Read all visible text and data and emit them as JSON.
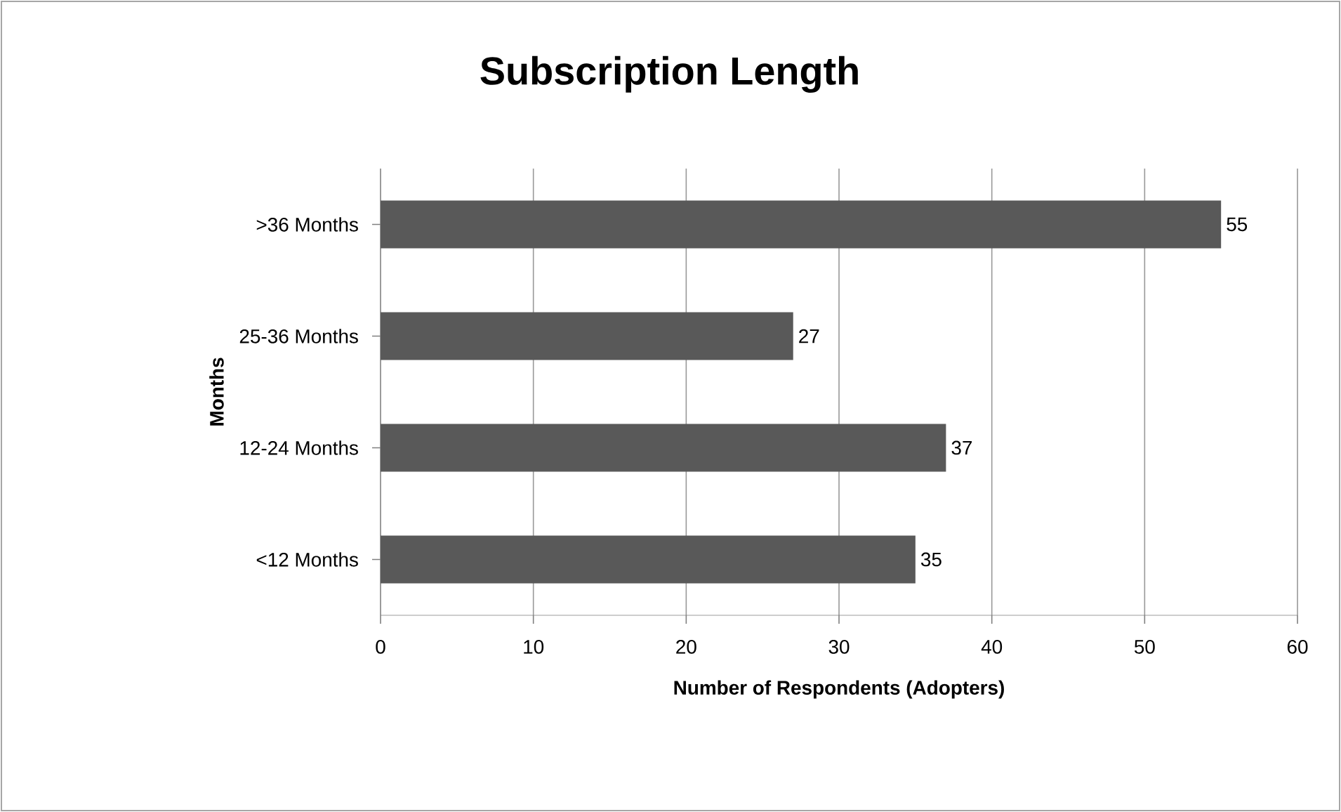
{
  "chart_data": {
    "type": "bar",
    "orientation": "horizontal",
    "title": "Subscription Length",
    "xlabel": "Number of Respondents (Adopters)",
    "ylabel": "Months",
    "categories": [
      ">36 Months",
      "25-36 Months",
      "12-24 Months",
      "<12 Months"
    ],
    "values": [
      55,
      27,
      37,
      35
    ],
    "color": "#595959",
    "xlim": [
      0,
      60
    ],
    "xticks": [
      0,
      10,
      20,
      30,
      40,
      50,
      60
    ],
    "grid": "x",
    "data_labels": true
  }
}
